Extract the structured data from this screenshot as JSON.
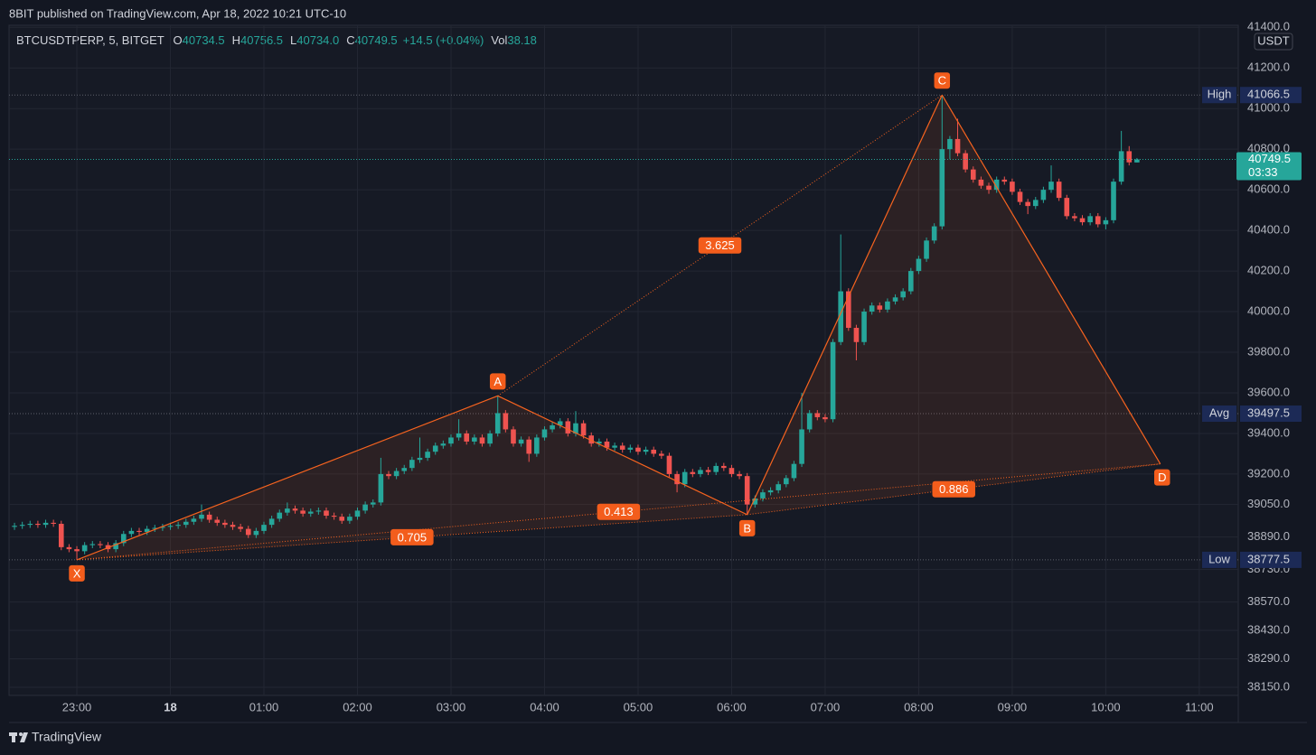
{
  "header": {
    "publisher": "8BIT published on TradingView.com, Apr 18, 2022 10:21 UTC-10",
    "symbol": "BTCUSDTPERP, 5, BITGET",
    "legend": [
      {
        "label": "O",
        "value": "40734.5"
      },
      {
        "label": "H",
        "value": "40756.5"
      },
      {
        "label": "L",
        "value": "40734.0"
      },
      {
        "label": "C",
        "value": "40749.5"
      }
    ],
    "change": "+14.5 (+0.04%)",
    "volume": {
      "label": "Vol",
      "value": "38.18"
    }
  },
  "footer": "TradingView",
  "chart_data": {
    "type": "candlestick",
    "currency": "USDT",
    "up_color": "#26a69a",
    "down_color": "#ef5350",
    "pattern_color": "#f7631f",
    "grid": true,
    "xlim": [
      1336.5,
      2125
    ],
    "xticks": [
      {
        "value": 1380,
        "label": "23:00"
      },
      {
        "value": 1440,
        "label": "18"
      },
      {
        "value": 1500,
        "label": "01:00"
      },
      {
        "value": 1560,
        "label": "02:00"
      },
      {
        "value": 1620,
        "label": "03:00"
      },
      {
        "value": 1680,
        "label": "04:00"
      },
      {
        "value": 1740,
        "label": "05:00"
      },
      {
        "value": 1800,
        "label": "06:00"
      },
      {
        "value": 1860,
        "label": "07:00"
      },
      {
        "value": 1920,
        "label": "08:00"
      },
      {
        "value": 1980,
        "label": "09:00"
      },
      {
        "value": 2040,
        "label": "10:00"
      },
      {
        "value": 2100,
        "label": "11:00"
      }
    ],
    "ylim": [
      38110,
      41410
    ],
    "yticks": [
      {
        "value": 41400,
        "label": "41400.0"
      },
      {
        "value": 41200,
        "label": "41200.0"
      },
      {
        "value": 41000,
        "label": "41000.0"
      },
      {
        "value": 40800,
        "label": "40800.0"
      },
      {
        "value": 40600,
        "label": "40600.0"
      },
      {
        "value": 40400,
        "label": "40400.0"
      },
      {
        "value": 40200,
        "label": "40200.0"
      },
      {
        "value": 40000,
        "label": "40000.0"
      },
      {
        "value": 39800,
        "label": "39800.0"
      },
      {
        "value": 39600,
        "label": "39600.0"
      },
      {
        "value": 39400,
        "label": "39400.0"
      },
      {
        "value": 39200,
        "label": "39200.0"
      },
      {
        "value": 39050,
        "label": "39050.0"
      },
      {
        "value": 38890,
        "label": "38890.0"
      },
      {
        "value": 38730,
        "label": "38730.0"
      },
      {
        "value": 38570,
        "label": "38570.0"
      },
      {
        "value": 38430,
        "label": "38430.0"
      },
      {
        "value": 38290,
        "label": "38290.0"
      },
      {
        "value": 38150,
        "label": "38150.0"
      }
    ],
    "x": [
      1340,
      1345,
      1350,
      1355,
      1360,
      1365,
      1370,
      1375,
      1380,
      1385,
      1390,
      1395,
      1400,
      1405,
      1410,
      1415,
      1420,
      1425,
      1430,
      1435,
      1440,
      1445,
      1450,
      1455,
      1460,
      1465,
      1470,
      1475,
      1480,
      1485,
      1490,
      1495,
      1500,
      1505,
      1510,
      1515,
      1520,
      1525,
      1530,
      1535,
      1540,
      1545,
      1550,
      1555,
      1560,
      1565,
      1570,
      1575,
      1580,
      1585,
      1590,
      1595,
      1600,
      1605,
      1610,
      1615,
      1620,
      1625,
      1630,
      1635,
      1640,
      1645,
      1650,
      1655,
      1660,
      1665,
      1670,
      1675,
      1680,
      1685,
      1690,
      1695,
      1700,
      1705,
      1710,
      1715,
      1720,
      1725,
      1730,
      1735,
      1740,
      1745,
      1750,
      1755,
      1760,
      1765,
      1770,
      1775,
      1780,
      1785,
      1790,
      1795,
      1800,
      1805,
      1810,
      1815,
      1820,
      1825,
      1830,
      1835,
      1840,
      1845,
      1850,
      1855,
      1860,
      1865,
      1870,
      1875,
      1880,
      1885,
      1890,
      1895,
      1900,
      1905,
      1910,
      1915,
      1920,
      1925,
      1930,
      1935,
      1940,
      1945,
      1950,
      1955,
      1960,
      1965,
      1970,
      1975,
      1980,
      1985,
      1990,
      1995,
      2000,
      2005,
      2010,
      2015,
      2020,
      2025,
      2030,
      2035,
      2040,
      2045,
      2050,
      2055,
      2060
    ],
    "ohlc": [
      [
        38940,
        38960,
        38925,
        38945
      ],
      [
        38945,
        38965,
        38930,
        38950
      ],
      [
        38950,
        38970,
        38935,
        38955
      ],
      [
        38955,
        38970,
        38935,
        38950
      ],
      [
        38950,
        38975,
        38935,
        38960
      ],
      [
        38960,
        38975,
        38940,
        38955
      ],
      [
        38955,
        38970,
        38825,
        38840
      ],
      [
        38840,
        38855,
        38815,
        38830
      ],
      [
        38830,
        38845,
        38777.5,
        38820
      ],
      [
        38820,
        38865,
        38805,
        38850
      ],
      [
        38850,
        38870,
        38835,
        38855
      ],
      [
        38855,
        38870,
        38835,
        38850
      ],
      [
        38850,
        38865,
        38815,
        38830
      ],
      [
        38830,
        38875,
        38815,
        38860
      ],
      [
        38860,
        38920,
        38845,
        38905
      ],
      [
        38905,
        38935,
        38890,
        38920
      ],
      [
        38920,
        38935,
        38900,
        38915
      ],
      [
        38915,
        38945,
        38900,
        38930
      ],
      [
        38930,
        38950,
        38915,
        38935
      ],
      [
        38935,
        38955,
        38920,
        38940
      ],
      [
        38940,
        38960,
        38925,
        38945
      ],
      [
        38945,
        38965,
        38930,
        38950
      ],
      [
        38950,
        38980,
        38935,
        38965
      ],
      [
        38965,
        38995,
        38950,
        38980
      ],
      [
        38980,
        39050,
        38965,
        39000
      ],
      [
        39000,
        39015,
        38960,
        38975
      ],
      [
        38975,
        38990,
        38945,
        38960
      ],
      [
        38960,
        38975,
        38935,
        38950
      ],
      [
        38950,
        38965,
        38925,
        38940
      ],
      [
        38940,
        38955,
        38915,
        38930
      ],
      [
        38930,
        38945,
        38885,
        38900
      ],
      [
        38900,
        38935,
        38885,
        38920
      ],
      [
        38920,
        38965,
        38905,
        38950
      ],
      [
        38950,
        38995,
        38935,
        38980
      ],
      [
        38980,
        39025,
        38965,
        39010
      ],
      [
        39010,
        39060,
        38995,
        39030
      ],
      [
        39030,
        39045,
        39005,
        39020
      ],
      [
        39020,
        39035,
        38990,
        39005
      ],
      [
        39005,
        39030,
        38990,
        39015
      ],
      [
        39015,
        39035,
        39000,
        39020
      ],
      [
        39020,
        39035,
        38980,
        38995
      ],
      [
        38995,
        39010,
        38975,
        38990
      ],
      [
        38990,
        39005,
        38955,
        38970
      ],
      [
        38970,
        39005,
        38955,
        38990
      ],
      [
        38990,
        39035,
        38975,
        39020
      ],
      [
        39020,
        39065,
        39005,
        39050
      ],
      [
        39050,
        39075,
        39035,
        39060
      ],
      [
        39060,
        39280,
        39045,
        39200
      ],
      [
        39200,
        39215,
        39175,
        39190
      ],
      [
        39190,
        39230,
        39175,
        39215
      ],
      [
        39215,
        39245,
        39200,
        39230
      ],
      [
        39230,
        39285,
        39215,
        39270
      ],
      [
        39270,
        39380,
        39255,
        39280
      ],
      [
        39280,
        39325,
        39265,
        39310
      ],
      [
        39310,
        39355,
        39295,
        39340
      ],
      [
        39340,
        39365,
        39325,
        39350
      ],
      [
        39350,
        39395,
        39335,
        39380
      ],
      [
        39380,
        39470,
        39365,
        39400
      ],
      [
        39400,
        39415,
        39345,
        39360
      ],
      [
        39360,
        39395,
        39345,
        39380
      ],
      [
        39380,
        39395,
        39335,
        39350
      ],
      [
        39350,
        39415,
        39335,
        39400
      ],
      [
        39400,
        39585,
        39385,
        39500
      ],
      [
        39500,
        39515,
        39405,
        39420
      ],
      [
        39420,
        39435,
        39335,
        39350
      ],
      [
        39350,
        39385,
        39335,
        39370
      ],
      [
        39370,
        39385,
        39260,
        39300
      ],
      [
        39300,
        39395,
        39285,
        39380
      ],
      [
        39380,
        39435,
        39365,
        39420
      ],
      [
        39420,
        39455,
        39405,
        39440
      ],
      [
        39440,
        39475,
        39425,
        39460
      ],
      [
        39460,
        39475,
        39385,
        39400
      ],
      [
        39400,
        39510,
        39385,
        39450
      ],
      [
        39450,
        39465,
        39375,
        39390
      ],
      [
        39390,
        39405,
        39335,
        39350
      ],
      [
        39350,
        39375,
        39335,
        39360
      ],
      [
        39360,
        39375,
        39315,
        39330
      ],
      [
        39330,
        39355,
        39315,
        39340
      ],
      [
        39340,
        39355,
        39305,
        39320
      ],
      [
        39320,
        39345,
        39305,
        39330
      ],
      [
        39330,
        39345,
        39295,
        39310
      ],
      [
        39310,
        39335,
        39295,
        39320
      ],
      [
        39320,
        39335,
        39285,
        39300
      ],
      [
        39300,
        39315,
        39275,
        39290
      ],
      [
        39290,
        39305,
        39185,
        39200
      ],
      [
        39200,
        39215,
        39110,
        39150
      ],
      [
        39150,
        39225,
        39135,
        39210
      ],
      [
        39210,
        39225,
        39185,
        39200
      ],
      [
        39200,
        39235,
        39185,
        39220
      ],
      [
        39220,
        39235,
        39195,
        39210
      ],
      [
        39210,
        39255,
        39195,
        39240
      ],
      [
        39240,
        39255,
        39215,
        39230
      ],
      [
        39230,
        39245,
        39185,
        39200
      ],
      [
        39200,
        39215,
        39175,
        39190
      ],
      [
        39190,
        39205,
        39000,
        39050
      ],
      [
        39050,
        39095,
        39035,
        39080
      ],
      [
        39080,
        39125,
        39065,
        39110
      ],
      [
        39110,
        39135,
        39095,
        39120
      ],
      [
        39120,
        39165,
        39105,
        39150
      ],
      [
        39150,
        39195,
        39135,
        39180
      ],
      [
        39180,
        39265,
        39165,
        39250
      ],
      [
        39250,
        39600,
        39235,
        39420
      ],
      [
        39420,
        39515,
        39405,
        39500
      ],
      [
        39500,
        39515,
        39465,
        39480
      ],
      [
        39480,
        39495,
        39455,
        39470
      ],
      [
        39470,
        39865,
        39455,
        39850
      ],
      [
        39850,
        40380,
        39835,
        40100
      ],
      [
        40100,
        40115,
        39905,
        39920
      ],
      [
        39920,
        39935,
        39760,
        39850
      ],
      [
        39850,
        40015,
        39835,
        40000
      ],
      [
        40000,
        40045,
        39985,
        40030
      ],
      [
        40030,
        40045,
        39995,
        40010
      ],
      [
        40010,
        40065,
        39995,
        40050
      ],
      [
        40050,
        40085,
        40035,
        40070
      ],
      [
        40070,
        40115,
        40055,
        40100
      ],
      [
        40100,
        40215,
        40085,
        40200
      ],
      [
        40200,
        40275,
        40185,
        40260
      ],
      [
        40260,
        40365,
        40245,
        40350
      ],
      [
        40350,
        40435,
        40335,
        40420
      ],
      [
        40420,
        41066.5,
        40405,
        40800
      ],
      [
        40800,
        40865,
        40750,
        40850
      ],
      [
        40850,
        40950,
        40765,
        40780
      ],
      [
        40780,
        40795,
        40685,
        40700
      ],
      [
        40700,
        40715,
        40635,
        40650
      ],
      [
        40650,
        40665,
        40605,
        40620
      ],
      [
        40620,
        40635,
        40580,
        40600
      ],
      [
        40600,
        40665,
        40585,
        40650
      ],
      [
        40650,
        40665,
        40625,
        40640
      ],
      [
        40640,
        40655,
        40575,
        40590
      ],
      [
        40590,
        40605,
        40525,
        40540
      ],
      [
        40540,
        40555,
        40480,
        40520
      ],
      [
        40520,
        40565,
        40505,
        40550
      ],
      [
        40550,
        40615,
        40535,
        40600
      ],
      [
        40600,
        40720,
        40585,
        40640
      ],
      [
        40640,
        40655,
        40545,
        40560
      ],
      [
        40560,
        40575,
        40455,
        40470
      ],
      [
        40470,
        40485,
        40445,
        40460
      ],
      [
        40460,
        40475,
        40425,
        40440
      ],
      [
        40440,
        40485,
        40425,
        40470
      ],
      [
        40470,
        40485,
        40415,
        40430
      ],
      [
        40430,
        40465,
        40405,
        40450
      ],
      [
        40450,
        40655,
        40435,
        40640
      ],
      [
        40640,
        40890,
        40625,
        40790
      ],
      [
        40790,
        40815,
        40720,
        40735
      ],
      [
        40734.5,
        40756.5,
        40734,
        40749.5
      ]
    ],
    "levels": [
      {
        "name": "High",
        "value": 41066.5
      },
      {
        "name": "Avg",
        "value": 39497.5
      },
      {
        "name": "Low",
        "value": 38777.5
      }
    ],
    "last": {
      "value": 40749.5,
      "countdown": "03:33"
    },
    "points": [
      {
        "label": "X",
        "x": 1380,
        "price": 38777.5
      },
      {
        "label": "A",
        "x": 1650,
        "price": 39585
      },
      {
        "label": "B",
        "x": 1810,
        "price": 39000
      },
      {
        "label": "C",
        "x": 1935,
        "price": 41066.5
      },
      {
        "label": "D",
        "x": 2075,
        "price": 39250
      }
    ],
    "ratios": [
      3.625,
      0.705,
      0.413,
      0.886
    ]
  }
}
